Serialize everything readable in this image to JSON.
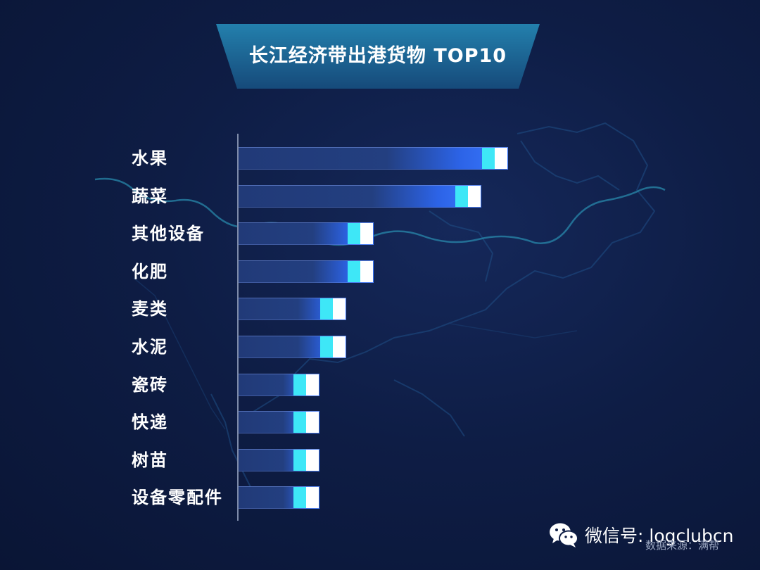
{
  "chart_data": {
    "type": "bar",
    "orientation": "horizontal",
    "title": "长江经济带出港货物 TOP10",
    "categories": [
      "水果",
      "蔬菜",
      "其他设备",
      "化肥",
      "麦类",
      "水泥",
      "瓷砖",
      "快递",
      "树苗",
      "设备零配件"
    ],
    "values": [
      10,
      9,
      5,
      5,
      4,
      4,
      3,
      3,
      3,
      3
    ],
    "xlim": [
      0,
      10
    ],
    "grid": false,
    "legend": "none"
  },
  "footer": {
    "wechat_label": "微信号: logclubcn",
    "source": "数据来源：满帮"
  },
  "colors": {
    "background": "#0e1d45",
    "bar_base": "#233f80",
    "bar_highlight": "#3a78ff",
    "cap_cyan": "#3ee7f7",
    "cap_white": "#ffffff",
    "title_banner": "#1e6f9c"
  },
  "icons": {
    "wechat": "wechat-logo-icon"
  }
}
